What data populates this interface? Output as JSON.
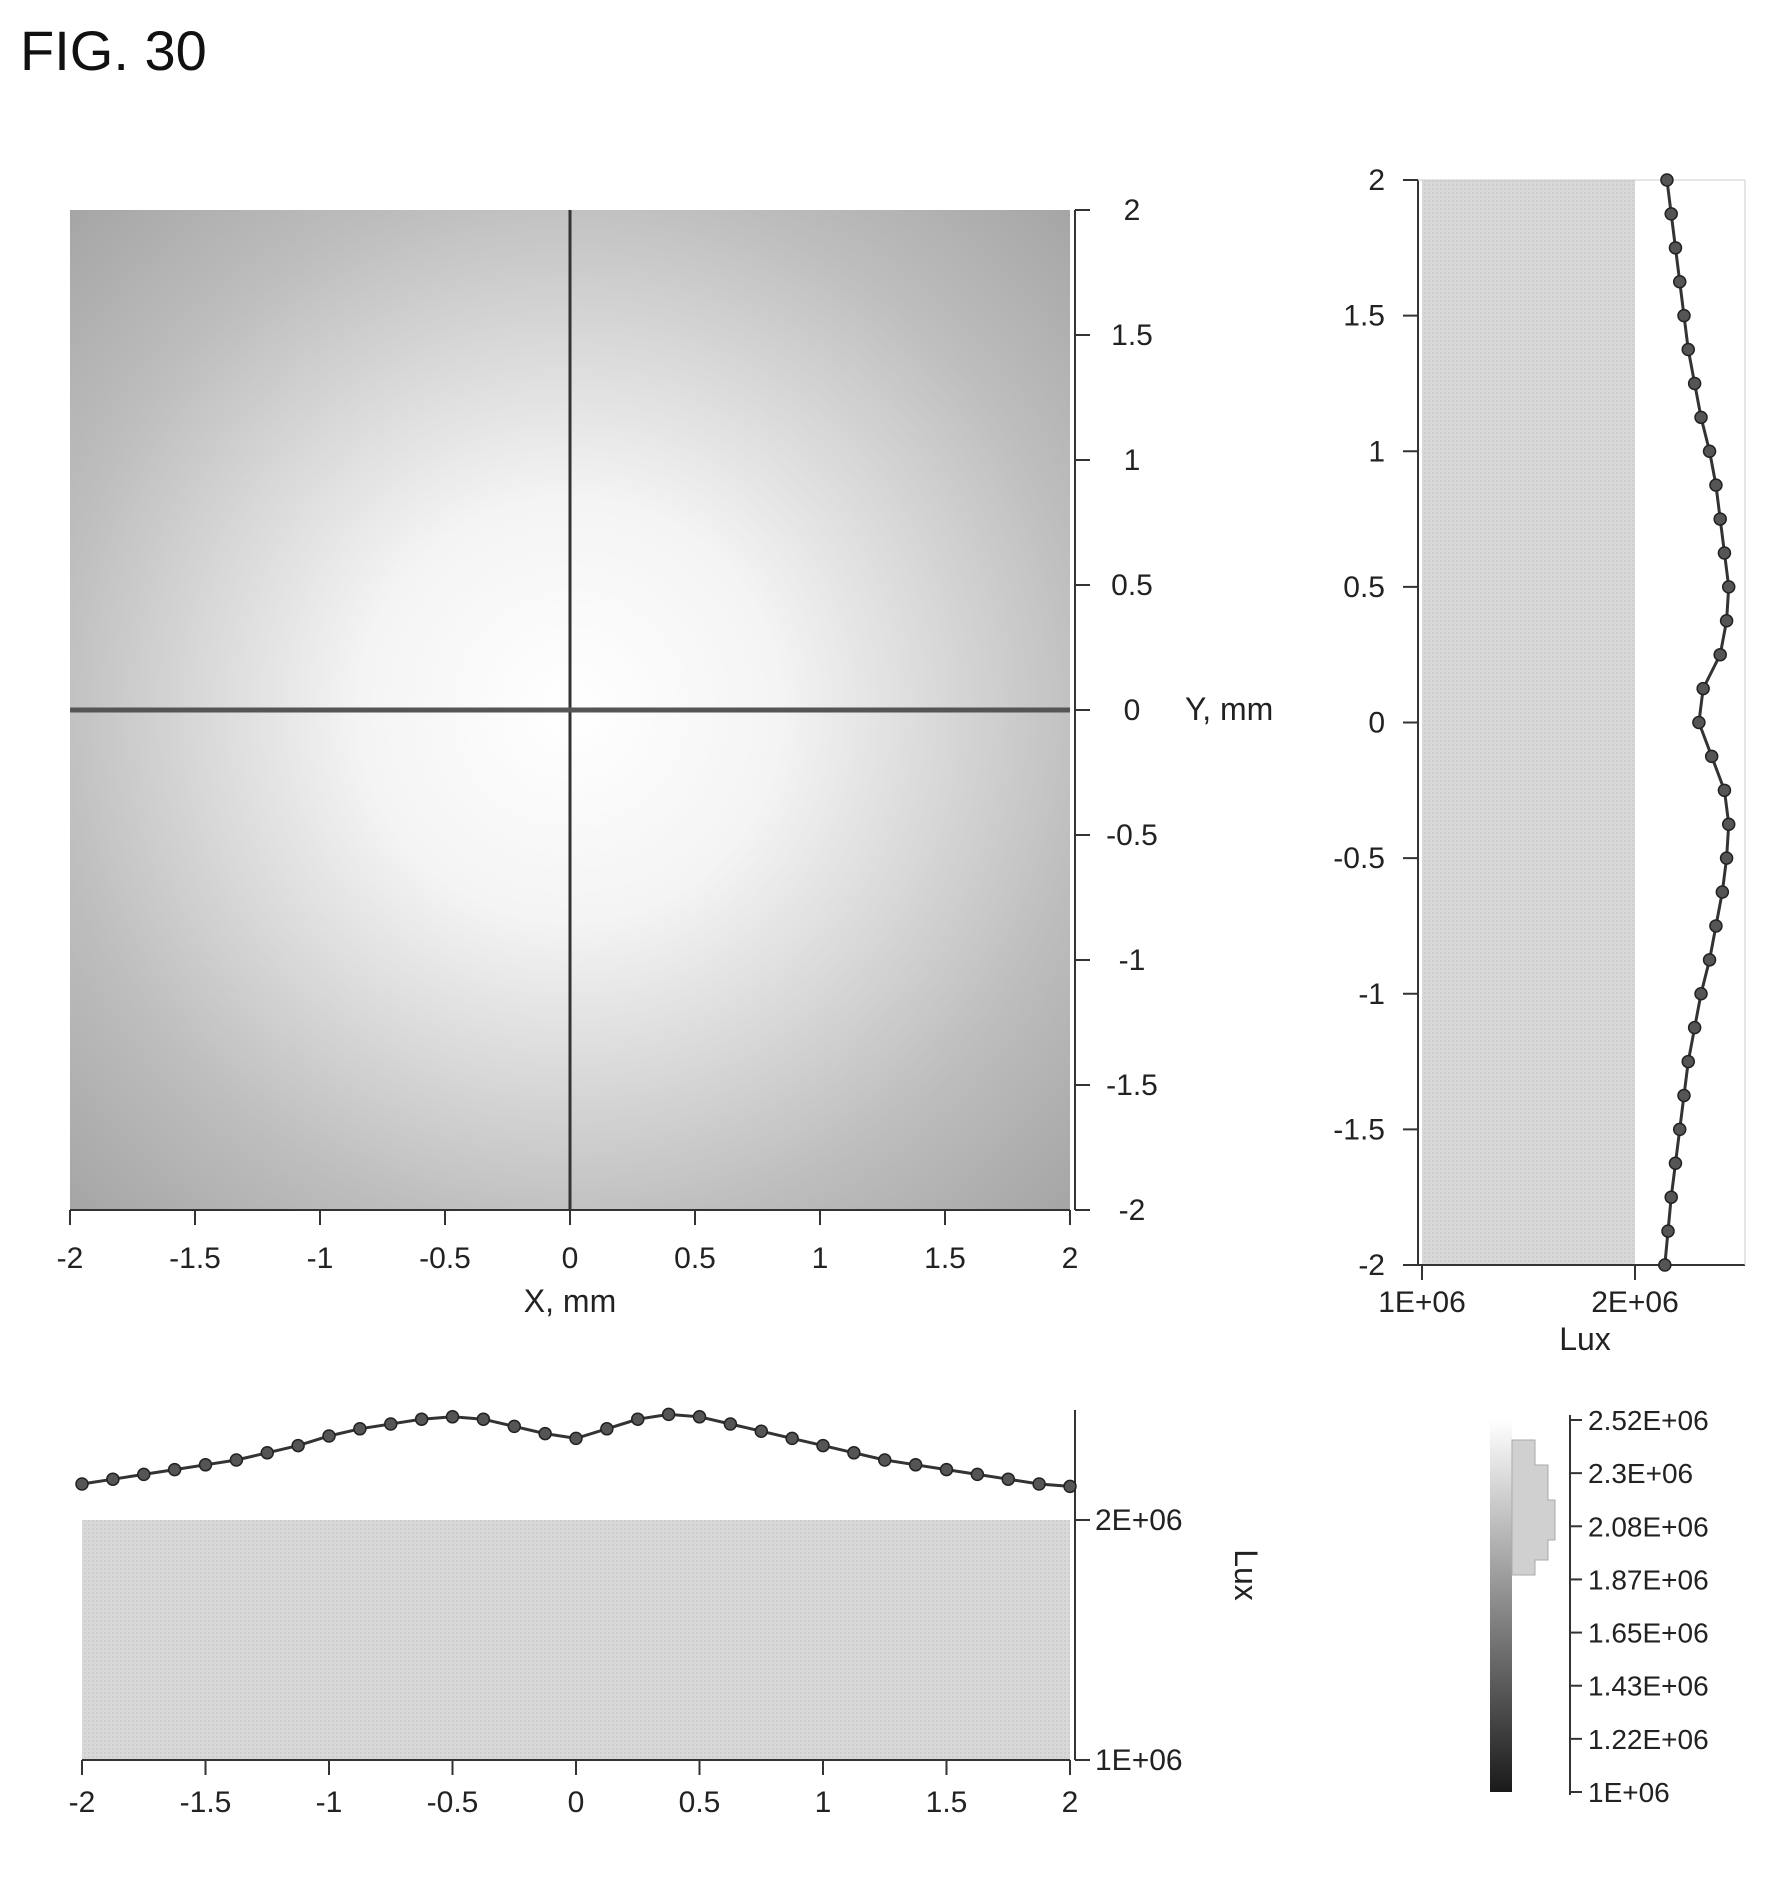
{
  "figure_title": "FIG. 30",
  "colors": {
    "line": "#333333",
    "fill_light": "#d8d8d8",
    "axis": "#333333"
  },
  "chart_data": [
    {
      "type": "heatmap",
      "xlabel": "X, mm",
      "ylabel": "Y, mm",
      "xlim": [
        -2,
        2
      ],
      "ylim": [
        -2,
        2
      ],
      "x_ticks": [
        "-2",
        "-1.5",
        "-1",
        "-0.5",
        "0",
        "0.5",
        "1",
        "1.5",
        "2"
      ],
      "y_ticks": [
        "2",
        "1.5",
        "1",
        "0.5",
        "0",
        "-0.5",
        "-1",
        "-1.5",
        "-2"
      ],
      "crosshair": [
        0,
        0
      ]
    },
    {
      "type": "line",
      "orientation": "vertical",
      "ylabel": "Lux",
      "xlim": [
        -2,
        2
      ],
      "ylim": [
        1000000,
        2500000
      ],
      "x_ticks": [
        "-2",
        "-1.5",
        "-1",
        "-0.5",
        "0",
        "0.5",
        "1",
        "1.5",
        "2"
      ],
      "y_ticks": [
        "2E+06",
        "1E+06"
      ],
      "x": [
        -2.0,
        -1.875,
        -1.75,
        -1.625,
        -1.5,
        -1.375,
        -1.25,
        -1.125,
        -1.0,
        -0.875,
        -0.75,
        -0.625,
        -0.5,
        -0.375,
        -0.25,
        -0.125,
        0.0,
        0.125,
        0.25,
        0.375,
        0.5,
        0.625,
        0.75,
        0.875,
        1.0,
        1.125,
        1.25,
        1.375,
        1.5,
        1.625,
        1.75,
        1.875,
        2.0
      ],
      "values": [
        2150000,
        2170000,
        2190000,
        2210000,
        2230000,
        2250000,
        2280000,
        2310000,
        2350000,
        2380000,
        2400000,
        2420000,
        2430000,
        2420000,
        2390000,
        2360000,
        2340000,
        2380000,
        2420000,
        2440000,
        2430000,
        2400000,
        2370000,
        2340000,
        2310000,
        2280000,
        2250000,
        2230000,
        2210000,
        2190000,
        2170000,
        2150000,
        2140000
      ]
    },
    {
      "type": "line",
      "orientation": "horizontal",
      "xlabel": "Lux",
      "xlim": [
        1000000,
        2500000
      ],
      "ylim": [
        -2,
        2
      ],
      "x_ticks": [
        "1E+06",
        "2E+06"
      ],
      "y_ticks": [
        "2",
        "1.5",
        "1",
        "0.5",
        "0",
        "-0.5",
        "-1",
        "-1.5",
        "-2"
      ],
      "y": [
        2.0,
        1.875,
        1.75,
        1.625,
        1.5,
        1.375,
        1.25,
        1.125,
        1.0,
        0.875,
        0.75,
        0.625,
        0.5,
        0.375,
        0.25,
        0.125,
        0.0,
        -0.125,
        -0.25,
        -0.375,
        -0.5,
        -0.625,
        -0.75,
        -0.875,
        -1.0,
        -1.125,
        -1.25,
        -1.375,
        -1.5,
        -1.625,
        -1.75,
        -1.875,
        -2.0
      ],
      "values": [
        2150000,
        2170000,
        2190000,
        2210000,
        2230000,
        2250000,
        2280000,
        2310000,
        2350000,
        2380000,
        2400000,
        2420000,
        2440000,
        2430000,
        2400000,
        2320000,
        2300000,
        2360000,
        2420000,
        2440000,
        2430000,
        2410000,
        2380000,
        2350000,
        2310000,
        2280000,
        2250000,
        2230000,
        2210000,
        2190000,
        2170000,
        2155000,
        2140000
      ]
    },
    {
      "type": "heatmap",
      "role": "colorbar",
      "range": [
        1000000,
        2520000
      ],
      "tick_labels": [
        "2.52E+06",
        "2.3E+06",
        "2.08E+06",
        "1.87E+06",
        "1.65E+06",
        "1.43E+06",
        "1.22E+06",
        "1E+06"
      ]
    }
  ]
}
